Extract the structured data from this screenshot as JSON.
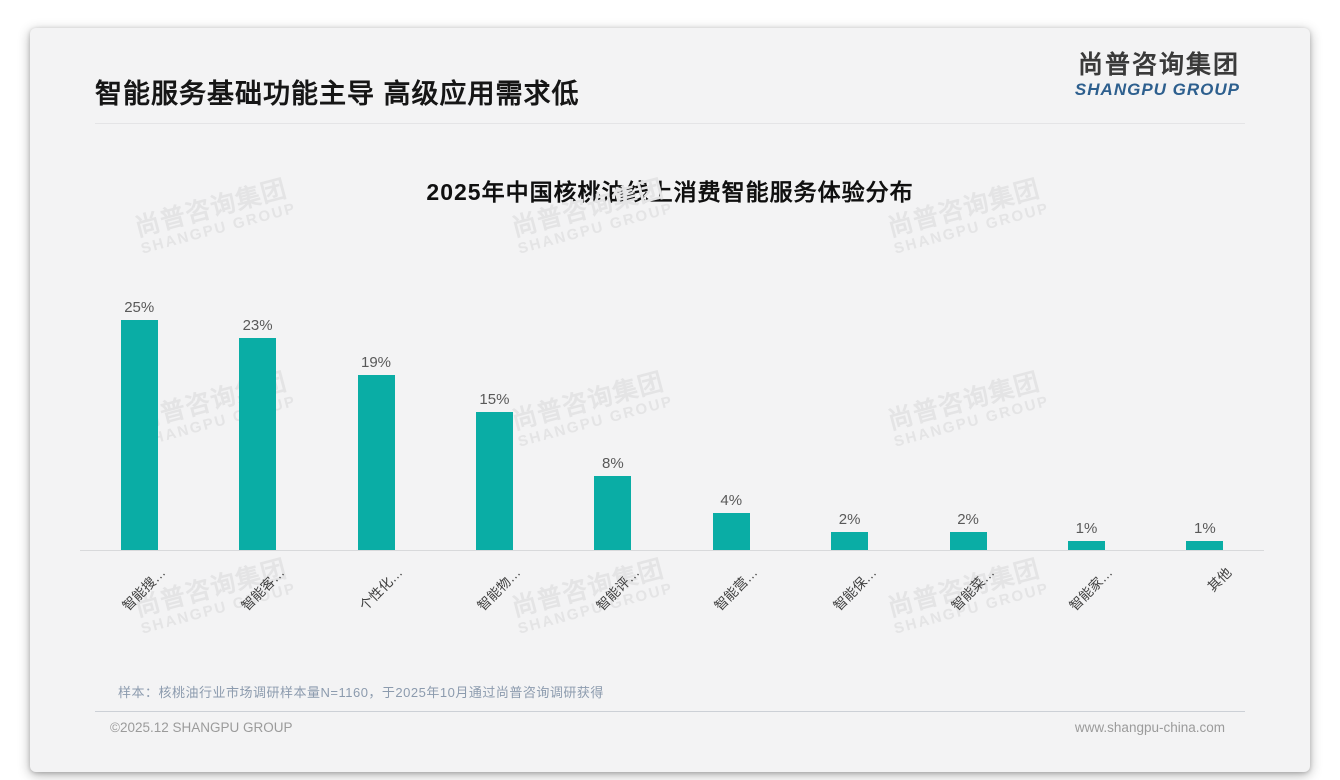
{
  "page": {
    "main_title": "智能服务基础功能主导 高级应用需求低",
    "logo": {
      "cn": "尚普咨询集团",
      "en": "SHANGPU GROUP"
    },
    "watermark": {
      "line1": "尚普咨询集团",
      "line2": "SHANGPU GROUP"
    },
    "footnote": "样本：核桃油行业市场调研样本量N=1160，于2025年10月通过尚普咨询调研获得",
    "footer": {
      "left": "©2025.12 SHANGPU GROUP",
      "right": "www.shangpu-china.com"
    }
  },
  "chart_data": {
    "type": "bar",
    "title": "2025年中国核桃油线上消费智能服务体验分布",
    "categories": [
      "智能搜…",
      "智能客…",
      "个性化…",
      "智能物…",
      "智能评…",
      "智能营…",
      "智能保…",
      "智能菜…",
      "智能家…",
      "其他"
    ],
    "values": [
      25,
      23,
      19,
      15,
      8,
      4,
      2,
      2,
      1,
      1
    ],
    "unit": "%",
    "value_labels": [
      "25%",
      "23%",
      "19%",
      "15%",
      "8%",
      "4%",
      "2%",
      "2%",
      "1%",
      "1%"
    ],
    "bar_color": "#0AADA5",
    "value_label_color": "#595959",
    "axis_line_color": "#d8d9db",
    "ylim": [
      0,
      27
    ],
    "grid": false,
    "legend": false,
    "label_rotation_deg": -45
  }
}
